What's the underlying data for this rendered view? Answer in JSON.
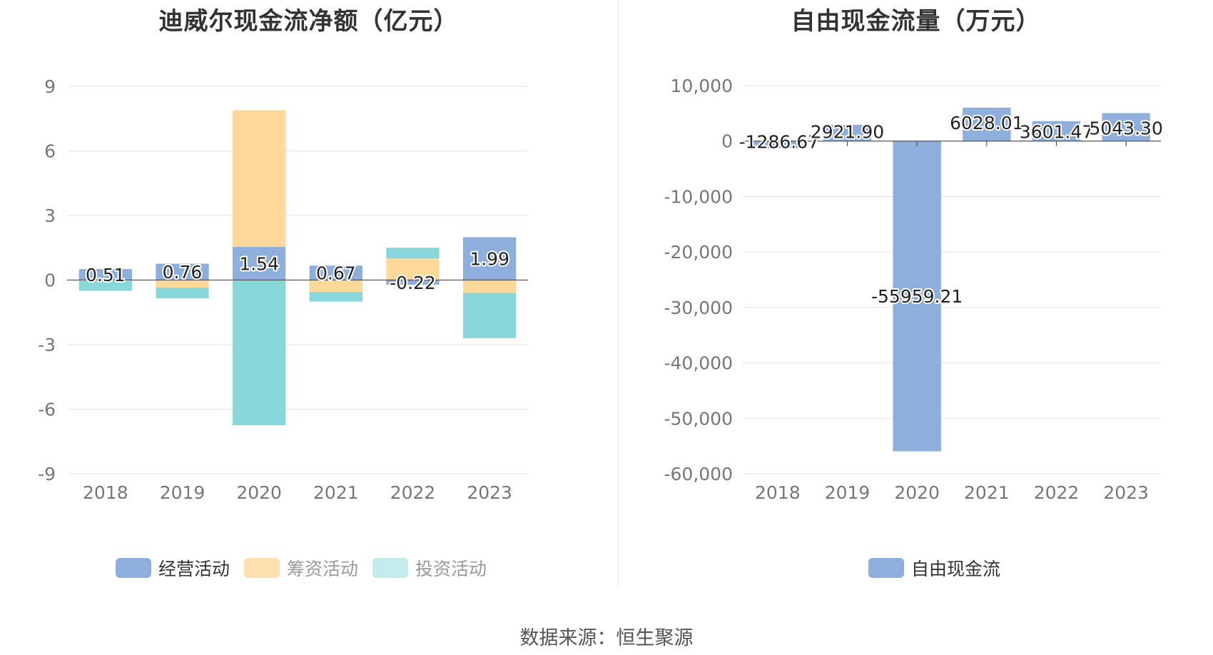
{
  "charts": [
    {
      "title": "迪威尔现金流净额（亿元）",
      "legend": [
        {
          "label": "经营活动",
          "color": "#8eaedb",
          "active": true
        },
        {
          "label": "筹资活动",
          "color": "#fde0b0",
          "active": false
        },
        {
          "label": "投资活动",
          "color": "#c5ecec",
          "active": false
        }
      ]
    },
    {
      "title": "自由现金流量（万元）",
      "legend": [
        {
          "label": "自由现金流",
          "color": "#8eaedb",
          "active": true
        }
      ]
    }
  ],
  "source": "数据来源：恒生聚源",
  "chart_data": [
    {
      "type": "bar",
      "stacked": true,
      "title": "迪威尔现金流净额（亿元）",
      "categories": [
        "2018",
        "2019",
        "2020",
        "2021",
        "2022",
        "2023"
      ],
      "series": [
        {
          "name": "经营活动",
          "color": "#8eaedb",
          "values": [
            0.51,
            0.76,
            1.54,
            0.67,
            -0.22,
            1.99
          ],
          "labels": [
            "0.51",
            "0.76",
            "1.54",
            "0.67",
            "-0.22",
            "1.99"
          ]
        },
        {
          "name": "筹资活动",
          "color": "#fdd898",
          "values": [
            -0.05,
            -0.35,
            6.35,
            -0.55,
            1.0,
            -0.6
          ]
        },
        {
          "name": "投资活动",
          "color": "#88d8db",
          "values": [
            -0.45,
            -0.5,
            -6.75,
            -0.45,
            0.5,
            -2.1
          ]
        }
      ],
      "yticks": [
        "9",
        "6",
        "3",
        "0",
        "-3",
        "-6",
        "-9"
      ],
      "ylim": [
        -9,
        9
      ],
      "grid": true
    },
    {
      "type": "bar",
      "title": "自由现金流量（万元）",
      "categories": [
        "2018",
        "2019",
        "2020",
        "2021",
        "2022",
        "2023"
      ],
      "series": [
        {
          "name": "自由现金流",
          "color": "#8eaedb",
          "values": [
            -1286.67,
            2921.9,
            -55959.21,
            6028.01,
            3601.47,
            5043.3
          ],
          "labels": [
            "-1286.67",
            "2921.90",
            "-55959.21",
            "6028.01",
            "3601.47",
            "5043.30"
          ]
        }
      ],
      "yticks": [
        "10,000",
        "0",
        "-10,000",
        "-20,000",
        "-30,000",
        "-40,000",
        "-50,000",
        "-60,000"
      ],
      "ylim": [
        -60000,
        10000
      ],
      "grid": true
    }
  ]
}
